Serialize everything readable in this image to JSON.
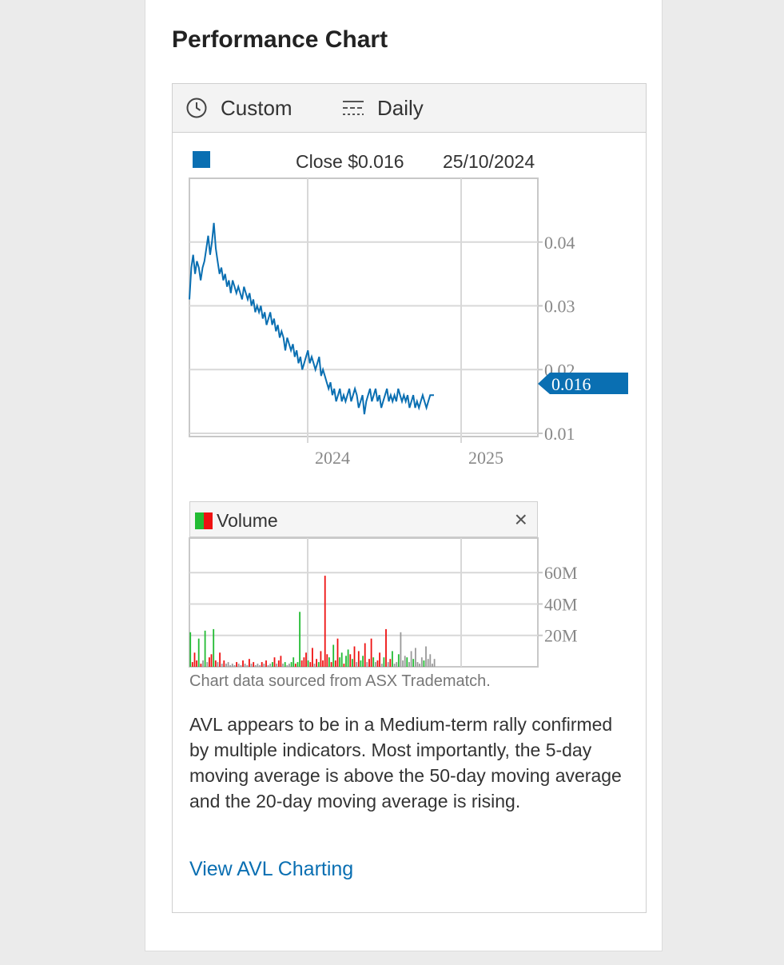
{
  "page": {
    "title": "Performance Chart"
  },
  "toolbar": {
    "period_label": "Custom",
    "period_icon": "clock-icon",
    "interval_label": "Daily",
    "interval_icon": "interval-lines-icon"
  },
  "legend": {
    "close_text": "Close $0.016",
    "date_text": "25/10/2024",
    "series_color": "#0a6fb2"
  },
  "volume_panel": {
    "label": "Volume",
    "close_glyph": "×",
    "up_color": "#22bb33",
    "down_color": "#ee1111",
    "neutral_color": "#999999"
  },
  "chart_data": [
    {
      "type": "line",
      "series": [
        {
          "values": [
            0.031,
            0.036,
            0.038,
            0.035,
            0.037,
            0.036,
            0.034,
            0.036,
            0.037,
            0.039,
            0.041,
            0.038,
            0.04,
            0.043,
            0.039,
            0.037,
            0.035,
            0.036,
            0.034,
            0.035,
            0.033,
            0.034,
            0.032,
            0.034,
            0.033,
            0.032,
            0.033,
            0.032,
            0.031,
            0.033,
            0.032,
            0.031,
            0.032,
            0.03,
            0.031,
            0.029,
            0.03,
            0.029,
            0.03,
            0.028,
            0.029,
            0.027,
            0.028,
            0.029,
            0.027,
            0.028,
            0.026,
            0.027,
            0.025,
            0.026,
            0.025,
            0.023,
            0.025,
            0.024,
            0.023,
            0.024,
            0.022,
            0.023,
            0.021,
            0.022,
            0.02,
            0.021,
            0.022,
            0.023,
            0.021,
            0.022,
            0.021,
            0.02,
            0.021,
            0.022,
            0.019,
            0.02,
            0.019,
            0.018,
            0.017,
            0.018,
            0.016,
            0.017,
            0.015,
            0.016,
            0.017,
            0.015,
            0.016,
            0.015,
            0.016,
            0.017,
            0.015,
            0.016,
            0.017,
            0.016,
            0.014,
            0.015,
            0.016,
            0.013,
            0.015,
            0.016,
            0.017,
            0.015,
            0.016,
            0.017,
            0.015,
            0.016,
            0.014,
            0.015,
            0.016,
            0.017,
            0.015,
            0.016,
            0.015,
            0.016,
            0.015,
            0.017,
            0.016,
            0.015,
            0.016,
            0.015,
            0.016,
            0.014,
            0.015,
            0.016,
            0.014,
            0.015,
            0.014,
            0.015,
            0.016,
            0.015,
            0.014,
            0.015,
            0.016,
            0.016,
            0.016
          ]
        }
      ],
      "x_ticks": [
        "2024",
        "2025"
      ],
      "y_ticks": [
        0.01,
        0.02,
        0.03,
        0.04
      ],
      "ylim": [
        0.0095,
        0.05
      ],
      "current_value_label": "0.016",
      "grid": true
    },
    {
      "type": "bar",
      "series": [
        {
          "values": [
            22,
            3,
            9,
            4,
            18,
            2,
            4,
            23,
            3,
            6,
            8,
            24,
            4,
            3,
            9,
            2,
            4,
            2,
            3,
            1,
            2,
            1,
            3,
            2,
            1,
            4,
            2,
            1,
            5,
            2,
            3,
            1,
            2,
            1,
            3,
            2,
            4,
            1,
            2,
            3,
            6,
            2,
            4,
            7,
            2,
            3,
            1,
            2,
            3,
            6,
            2,
            3,
            35,
            4,
            6,
            9,
            4,
            3,
            12,
            2,
            5,
            3,
            10,
            4,
            58,
            8,
            6,
            3,
            14,
            4,
            18,
            6,
            9,
            2,
            7,
            11,
            8,
            5,
            13,
            3,
            10,
            4,
            7,
            15,
            3,
            5,
            18,
            6,
            3,
            4,
            9,
            2,
            6,
            24,
            3,
            5,
            10,
            2,
            3,
            8,
            22,
            4,
            7,
            6,
            3,
            10,
            5,
            12,
            3,
            2,
            6,
            4,
            13,
            5,
            8,
            2,
            5
          ],
          "directions": [
            "u",
            "d",
            "d",
            "d",
            "u",
            "d",
            "n",
            "u",
            "n",
            "d",
            "d",
            "u",
            "d",
            "n",
            "d",
            "n",
            "d",
            "n",
            "n",
            "n",
            "n",
            "n",
            "d",
            "n",
            "n",
            "d",
            "n",
            "n",
            "d",
            "n",
            "d",
            "n",
            "n",
            "n",
            "d",
            "n",
            "d",
            "n",
            "n",
            "u",
            "d",
            "n",
            "d",
            "d",
            "n",
            "u",
            "n",
            "n",
            "u",
            "u",
            "d",
            "u",
            "u",
            "d",
            "d",
            "d",
            "u",
            "d",
            "d",
            "n",
            "d",
            "u",
            "d",
            "d",
            "d",
            "d",
            "u",
            "d",
            "u",
            "d",
            "d",
            "u",
            "u",
            "d",
            "u",
            "u",
            "d",
            "u",
            "d",
            "n",
            "d",
            "u",
            "u",
            "d",
            "n",
            "d",
            "d",
            "u",
            "n",
            "d",
            "d",
            "n",
            "u",
            "d",
            "n",
            "d",
            "u",
            "n",
            "n",
            "u",
            "n",
            "n",
            "n",
            "u",
            "n",
            "n",
            "u",
            "n",
            "n",
            "n",
            "n",
            "u",
            "n",
            "n",
            "n",
            "n",
            "n"
          ]
        }
      ],
      "y_ticks": [
        "20M",
        "40M",
        "60M"
      ],
      "ylim": [
        0,
        82
      ],
      "grid": true
    }
  ],
  "footer": {
    "source_note": "Chart data sourced from ASX Tradematch.",
    "analysis_text": "AVL appears to be in a Medium-term rally confirmed by multiple indicators. Most importantly, the 5-day moving average is above the 50-day moving average and the 20-day moving average is rising.",
    "link_label": "View AVL Charting"
  }
}
